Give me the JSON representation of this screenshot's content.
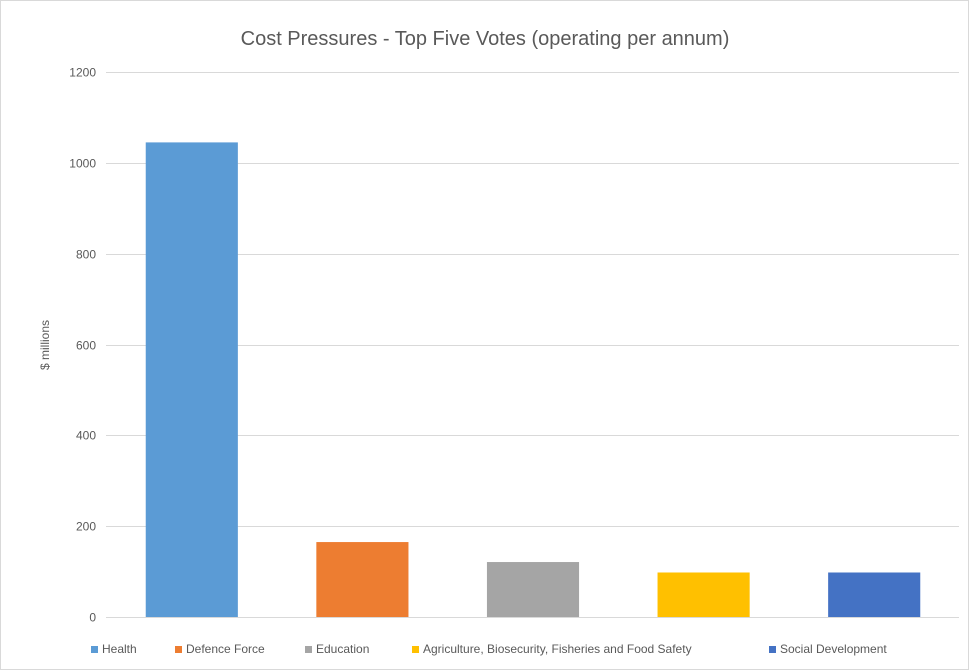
{
  "chart_data": {
    "type": "bar",
    "title": "Cost Pressures - Top Five Votes  (operating  per annum)",
    "xlabel": "",
    "ylabel": "$ millions",
    "ylim": [
      0,
      1200
    ],
    "yticks": [
      0,
      200,
      400,
      600,
      800,
      1000,
      1200
    ],
    "grid": true,
    "legend_position": "bottom",
    "series": [
      {
        "name": "Health",
        "value": 1045,
        "color": "#5b9bd5"
      },
      {
        "name": "Defence Force",
        "value": 165,
        "color": "#ed7d31"
      },
      {
        "name": "Education",
        "value": 121,
        "color": "#a5a5a5"
      },
      {
        "name": "Agriculture, Biosecurity, Fisheries and Food Safety",
        "value": 98,
        "color": "#ffc000"
      },
      {
        "name": "Social Development",
        "value": 98,
        "color": "#4472c4"
      }
    ]
  }
}
